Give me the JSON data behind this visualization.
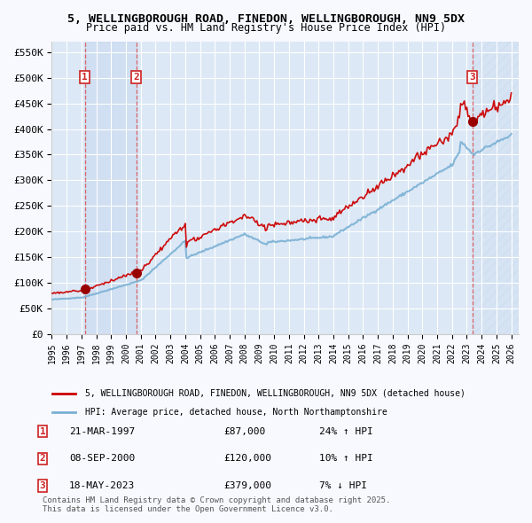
{
  "title_line1": "5, WELLINGBOROUGH ROAD, FINEDON, WELLINGBOROUGH, NN9 5DX",
  "title_line2": "Price paid vs. HM Land Registry's House Price Index (HPI)",
  "legend_line1": "5, WELLINGBOROUGH ROAD, FINEDON, WELLINGBOROUGH, NN9 5DX (detached house)",
  "legend_line2": "HPI: Average price, detached house, North Northamptonshire",
  "transactions": [
    {
      "num": 1,
      "date": "21-MAR-1997",
      "year": 1997.22,
      "price": 87000,
      "hpi_pct": "24% ↑ HPI"
    },
    {
      "num": 2,
      "date": "08-SEP-2000",
      "year": 2000.69,
      "price": 120000,
      "hpi_pct": "10% ↑ HPI"
    },
    {
      "num": 3,
      "date": "18-MAY-2023",
      "year": 2023.38,
      "price": 379000,
      "hpi_pct": "7% ↓ HPI"
    }
  ],
  "background_color": "#f0f4ff",
  "plot_bg_color": "#dce8f5",
  "grid_color": "#ffffff",
  "hatch_region_color": "#c8d8ee",
  "red_line_color": "#cc0000",
  "blue_line_color": "#7ab0d4",
  "dot_color": "#990000",
  "dashed_line_color": "#dd4444",
  "box_color": "#cc2222",
  "ylabel_values": [
    0,
    50000,
    100000,
    150000,
    200000,
    250000,
    300000,
    350000,
    400000,
    450000,
    500000,
    550000
  ],
  "ylim": [
    0,
    570000
  ],
  "xlim_start": 1995.0,
  "xlim_end": 2026.5,
  "footer_text": "Contains HM Land Registry data © Crown copyright and database right 2025.\nThis data is licensed under the Open Government Licence v3.0."
}
